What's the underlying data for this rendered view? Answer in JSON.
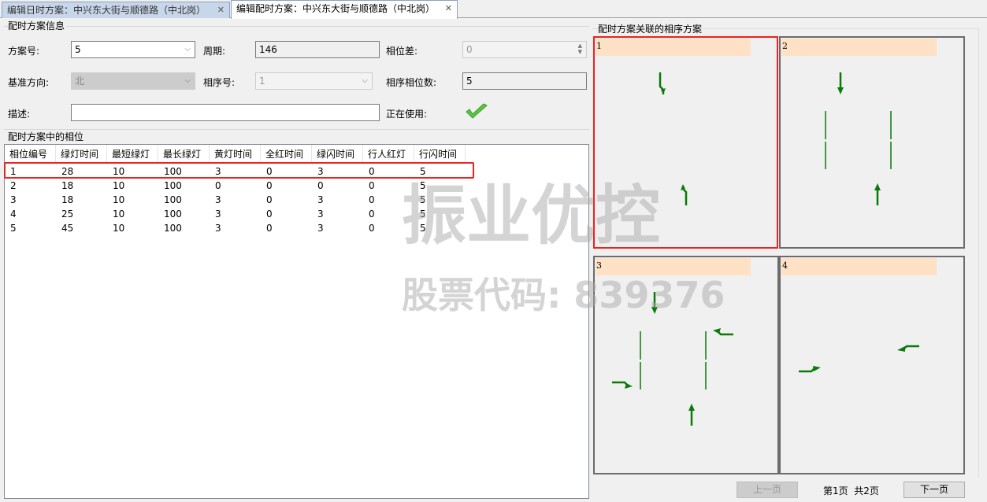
{
  "tabs": [
    {
      "label": "编辑日时方案：中兴东大街与顺德路（中北岗）",
      "active": false
    },
    {
      "label": "编辑配时方案：中兴东大街与顺德路（中北岗）",
      "active": true
    }
  ],
  "tab_close": "✕",
  "info": {
    "title": "配时方案信息",
    "plan_no": {
      "label": "方案号:",
      "value": "5"
    },
    "cycle": {
      "label": "周期:",
      "value": "146"
    },
    "offset": {
      "label": "相位差:",
      "value": "0"
    },
    "base_dir": {
      "label": "基准方向:",
      "value": "北"
    },
    "seq_no": {
      "label": "相序号:",
      "value": "1"
    },
    "seq_phase_count": {
      "label": "相序相位数:",
      "value": "5"
    },
    "desc": {
      "label": "描述:",
      "value": ""
    },
    "in_use": {
      "label": "正在使用:",
      "checked": true
    }
  },
  "phases": {
    "title": "配时方案中的相位",
    "columns": [
      "相位编号",
      "绿灯时间",
      "最短绿灯",
      "最长绿灯",
      "黄灯时间",
      "全红时间",
      "绿闪时间",
      "行人红灯",
      "行闪时间"
    ],
    "rows": [
      [
        "1",
        "28",
        "10",
        "100",
        "3",
        "0",
        "3",
        "0",
        "5"
      ],
      [
        "2",
        "18",
        "10",
        "100",
        "0",
        "0",
        "0",
        "0",
        "5"
      ],
      [
        "3",
        "18",
        "10",
        "100",
        "3",
        "0",
        "3",
        "0",
        "5"
      ],
      [
        "4",
        "25",
        "10",
        "100",
        "3",
        "0",
        "3",
        "0",
        "5"
      ],
      [
        "5",
        "45",
        "10",
        "100",
        "3",
        "0",
        "3",
        "0",
        "5"
      ]
    ],
    "highlighted_row": 1
  },
  "sequence": {
    "title": "配时方案关联的相序方案",
    "panels": [
      {
        "label": "1",
        "selected": true
      },
      {
        "label": "2"
      },
      {
        "label": "3"
      },
      {
        "label": "4"
      }
    ],
    "prev_label": "上一页",
    "next_label": "下一页",
    "page_info": "第1页  共2页"
  },
  "watermark": {
    "brand": "振业优控",
    "stock": "股票代码: 839376"
  },
  "colors": {
    "arrow": "#0a7a0a",
    "highlight": "#f02020",
    "panel_header": "#ffe2c6"
  }
}
